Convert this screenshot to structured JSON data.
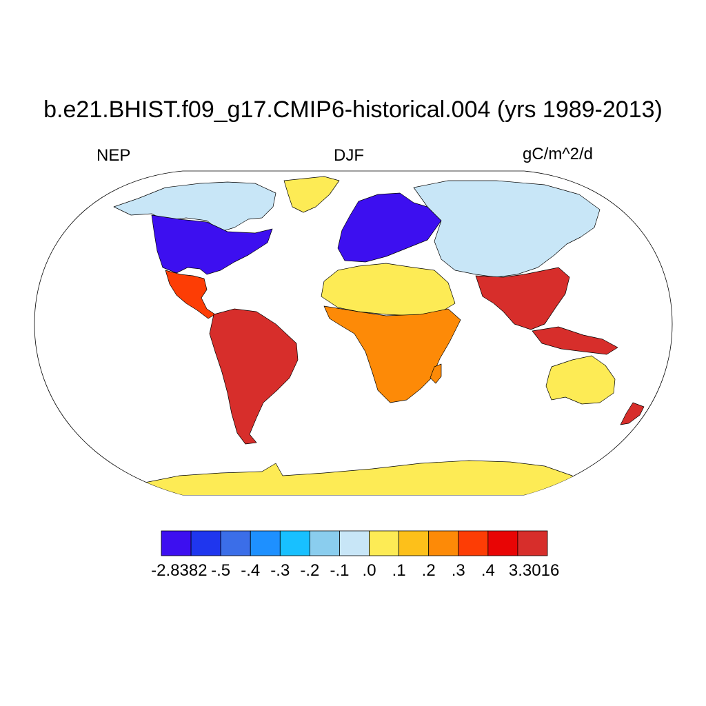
{
  "title": "b.e21.BHIST.f09_g17.CMIP6-historical.004 (yrs 1989-2013)",
  "left_string": "NEP",
  "center_string": "DJF",
  "right_string": "gC/m^2/d",
  "colorbar": {
    "colors": [
      "#3d0ff0",
      "#1f36ee",
      "#3b6ee8",
      "#1e90ff",
      "#18c0ff",
      "#8acdee",
      "#c8e6f7",
      "#fdeb55",
      "#fdc01a",
      "#fd8a07",
      "#fd3d05",
      "#e80505",
      "#d72e2b"
    ],
    "labels": [
      "-2.8382",
      "-.5",
      "-.4",
      "-.3",
      "-.2",
      "-.1",
      ".0",
      ".1",
      ".2",
      ".3",
      ".4",
      "3.3016"
    ]
  },
  "map": {
    "projection": "Robinson",
    "ocean_color": "#ffffff",
    "regions": [
      {
        "name": "North America (north)",
        "color": "#c8e6f7"
      },
      {
        "name": "Greenland",
        "color": "#fdeb55"
      },
      {
        "name": "Eastern North America",
        "color": "#3d0ff0"
      },
      {
        "name": "Central America",
        "color": "#fd3d05"
      },
      {
        "name": "South America",
        "color": "#d72e2b"
      },
      {
        "name": "Europe",
        "color": "#3d0ff0"
      },
      {
        "name": "Siberia",
        "color": "#c8e6f7"
      },
      {
        "name": "Sahara",
        "color": "#fdeb55"
      },
      {
        "name": "Central Africa",
        "color": "#fd8a07"
      },
      {
        "name": "South Asia",
        "color": "#d72e2b"
      },
      {
        "name": "Australia",
        "color": "#fdeb55"
      },
      {
        "name": "New Zealand",
        "color": "#d72e2b"
      },
      {
        "name": "Antarctica",
        "color": "#fdeb55"
      }
    ]
  }
}
